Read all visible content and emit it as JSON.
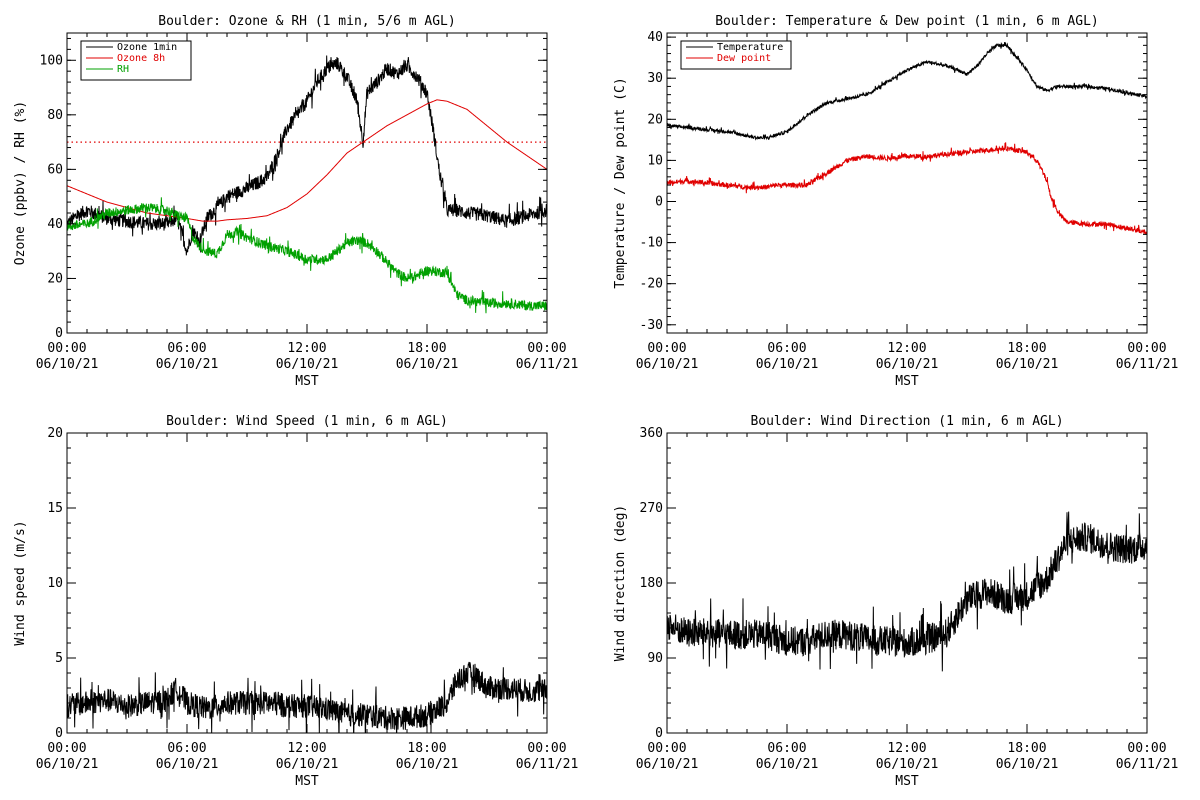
{
  "chart_data": [
    {
      "type": "line",
      "title": "Boulder: Ozone & RH (1 min, 5/6 m AGL)",
      "xlabel": "MST",
      "ylabel": "Ozone (ppbv) / RH (%)",
      "xlim": [
        0,
        24
      ],
      "ylim": [
        0,
        110
      ],
      "yticks": [
        0,
        20,
        40,
        60,
        80,
        100
      ],
      "xtick_labels": [
        [
          "00:00",
          "06/10/21"
        ],
        [
          "06:00",
          "06/10/21"
        ],
        [
          "12:00",
          "06/10/21"
        ],
        [
          "18:00",
          "06/10/21"
        ],
        [
          "00:00",
          "06/11/21"
        ]
      ],
      "legend_position": "top-left",
      "reference_line": {
        "y": 70,
        "color": "#e00000",
        "style": "dotted"
      },
      "series": [
        {
          "name": "Ozone 1min",
          "color": "#000000",
          "noise": 2.5,
          "x": [
            0,
            0.5,
            1,
            2,
            3,
            4,
            5,
            5.5,
            5.8,
            6,
            6.3,
            6.6,
            7,
            8,
            9,
            10,
            10.5,
            11,
            12,
            12.5,
            13,
            13.5,
            14,
            14.5,
            14.8,
            15,
            15.5,
            16,
            16.5,
            17,
            17.5,
            18,
            18.3,
            18.6,
            19,
            19.5,
            20,
            21,
            22,
            23,
            24
          ],
          "y": [
            40,
            43,
            45,
            42,
            41,
            40,
            40,
            42,
            35,
            30,
            38,
            33,
            42,
            50,
            53,
            57,
            65,
            75,
            85,
            92,
            97,
            99,
            94,
            85,
            70,
            88,
            92,
            97,
            95,
            98,
            94,
            88,
            75,
            60,
            45,
            45,
            44,
            43,
            41,
            43,
            45
          ]
        },
        {
          "name": "Ozone 8h",
          "color": "#e00000",
          "noise": 0,
          "x": [
            0,
            1,
            2,
            3,
            4,
            5,
            6,
            6.8,
            7.5,
            8,
            9,
            10,
            11,
            12,
            13,
            14,
            15,
            16,
            17,
            18,
            18.5,
            19,
            20,
            21,
            22,
            23,
            24
          ],
          "y": [
            54,
            51,
            48,
            46,
            44,
            43,
            42,
            41,
            41,
            41.5,
            42,
            43,
            46,
            51,
            58,
            66,
            71,
            76,
            80,
            84,
            85.5,
            85,
            82,
            76,
            70,
            65,
            60
          ]
        },
        {
          "name": "RH",
          "color": "#00a000",
          "noise": 1.8,
          "x": [
            0,
            1,
            2,
            3,
            4,
            5,
            5.5,
            6,
            6.3,
            6.6,
            7,
            7.5,
            8,
            8.5,
            9,
            10,
            11,
            12,
            13,
            13.5,
            14,
            14.5,
            15,
            15.5,
            16,
            16.5,
            17,
            17.5,
            18,
            19,
            19.5,
            20,
            21,
            22,
            23,
            24
          ],
          "y": [
            39,
            40,
            44,
            45,
            46,
            45,
            43,
            42,
            35,
            32,
            30,
            29,
            36,
            37,
            35,
            32,
            30,
            27,
            27,
            30,
            33,
            34,
            33,
            30,
            26,
            22,
            20,
            21,
            23,
            22,
            14,
            12,
            11,
            11,
            10,
            10
          ]
        }
      ]
    },
    {
      "type": "line",
      "title": "Boulder: Temperature & Dew point (1 min, 6 m AGL)",
      "xlabel": "MST",
      "ylabel": "Temperature / Dew point (C)",
      "xlim": [
        0,
        24
      ],
      "ylim": [
        -32,
        41
      ],
      "yticks": [
        -30,
        -20,
        -10,
        0,
        10,
        20,
        30,
        40
      ],
      "xtick_labels": [
        [
          "00:00",
          "06/10/21"
        ],
        [
          "06:00",
          "06/10/21"
        ],
        [
          "12:00",
          "06/10/21"
        ],
        [
          "18:00",
          "06/10/21"
        ],
        [
          "00:00",
          "06/11/21"
        ]
      ],
      "legend_position": "top-left",
      "series": [
        {
          "name": "Temperature",
          "color": "#000000",
          "noise": 0.4,
          "x": [
            0,
            1,
            2,
            3,
            4,
            4.5,
            5,
            6,
            7,
            8,
            9,
            10,
            11,
            12,
            13,
            14,
            15,
            15.5,
            16,
            16.5,
            17,
            17.5,
            18,
            18.5,
            19,
            19.5,
            20,
            21,
            22,
            23,
            24
          ],
          "y": [
            18.5,
            18,
            17.5,
            17,
            16,
            15.5,
            15.5,
            17,
            21,
            24,
            25,
            26,
            29,
            32,
            34,
            33,
            31,
            33,
            36,
            38,
            38,
            35,
            32,
            28,
            27,
            28,
            28,
            28,
            27.5,
            26.5,
            25.5
          ]
        },
        {
          "name": "Dew point",
          "color": "#e00000",
          "noise": 0.6,
          "x": [
            0,
            1,
            2,
            3,
            4,
            5,
            5.5,
            6,
            7,
            8,
            9,
            10,
            11,
            12,
            13,
            14,
            15,
            16,
            17,
            17.5,
            18,
            18.5,
            19,
            19.2,
            19.6,
            20,
            21,
            22,
            23,
            24
          ],
          "y": [
            4.5,
            5,
            4.5,
            4,
            3.5,
            3.5,
            4,
            4,
            4,
            7,
            10,
            11,
            10.5,
            11,
            11,
            11.5,
            12,
            12.5,
            13,
            12.5,
            12,
            10,
            5,
            1,
            -3,
            -5,
            -5.5,
            -5.5,
            -6.5,
            -7.5
          ]
        }
      ]
    },
    {
      "type": "line",
      "title": "Boulder: Wind Speed (1 min, 6 m AGL)",
      "xlabel": "MST",
      "ylabel": "Wind speed (m/s)",
      "xlim": [
        0,
        24
      ],
      "ylim": [
        0,
        20
      ],
      "yticks": [
        0,
        5,
        10,
        15,
        20
      ],
      "xtick_labels": [
        [
          "00:00",
          "06/10/21"
        ],
        [
          "06:00",
          "06/10/21"
        ],
        [
          "12:00",
          "06/10/21"
        ],
        [
          "18:00",
          "06/10/21"
        ],
        [
          "00:00",
          "06/11/21"
        ]
      ],
      "series": [
        {
          "name": "",
          "color": "#000000",
          "noise": 0.8,
          "x": [
            0,
            1,
            2,
            3,
            4,
            5,
            5.5,
            6,
            7,
            8,
            9,
            10,
            11,
            12,
            13,
            14,
            15,
            16,
            17,
            18,
            19,
            19.5,
            20,
            20.5,
            21,
            22,
            23,
            24
          ],
          "y": [
            1.8,
            2,
            2.2,
            1.8,
            2,
            2.2,
            3,
            2,
            1.6,
            2,
            2,
            2,
            1.8,
            1.8,
            1.6,
            1.2,
            1.2,
            1,
            1,
            1.2,
            2,
            3.5,
            4,
            3.8,
            3,
            3,
            2.8,
            2.8
          ]
        }
      ]
    },
    {
      "type": "line",
      "title": "Boulder: Wind Direction (1 min, 6 m AGL)",
      "xlabel": "MST",
      "ylabel": "Wind direction (deg)",
      "xlim": [
        0,
        24
      ],
      "ylim": [
        0,
        360
      ],
      "yticks": [
        0,
        90,
        180,
        270,
        360
      ],
      "xtick_labels": [
        [
          "00:00",
          "06/10/21"
        ],
        [
          "06:00",
          "06/10/21"
        ],
        [
          "12:00",
          "06/10/21"
        ],
        [
          "18:00",
          "06/10/21"
        ],
        [
          "00:00",
          "06/11/21"
        ]
      ],
      "series": [
        {
          "name": "",
          "color": "#000000",
          "noise": 18,
          "x": [
            0,
            1,
            2,
            3,
            4,
            5,
            6,
            7,
            8,
            9,
            10,
            11,
            12,
            13,
            14,
            15,
            16,
            17,
            18,
            19,
            20,
            21,
            22,
            23,
            24
          ],
          "y": [
            130,
            120,
            120,
            118,
            118,
            118,
            110,
            110,
            118,
            118,
            112,
            110,
            108,
            112,
            120,
            160,
            170,
            160,
            165,
            185,
            230,
            235,
            225,
            220,
            225
          ]
        }
      ]
    }
  ]
}
